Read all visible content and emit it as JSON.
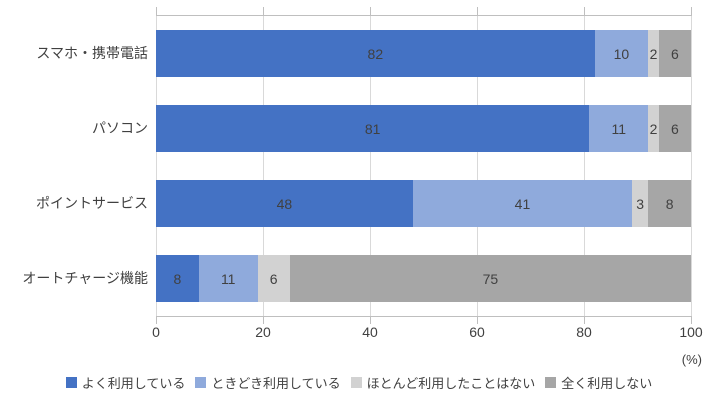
{
  "chart_data": {
    "type": "bar",
    "orientation": "horizontal",
    "stacked": true,
    "title": "",
    "categories": [
      "スマホ・携帯電話",
      "パソコン",
      "ポイントサービス",
      "オートチャージ機能"
    ],
    "series": [
      {
        "name": "よく利用している",
        "color": "#4472c4",
        "values": [
          82,
          81,
          48,
          8
        ]
      },
      {
        "name": "ときどき利用している",
        "color": "#8faadc",
        "values": [
          10,
          11,
          41,
          11
        ]
      },
      {
        "name": "ほとんど利用したことはない",
        "color": "#d2d2d2",
        "values": [
          2,
          2,
          3,
          6
        ]
      },
      {
        "name": "全く利用しない",
        "color": "#a6a6a6",
        "values": [
          6,
          6,
          8,
          75
        ]
      }
    ],
    "x_axis": {
      "min": 0,
      "max": 100,
      "ticks": [
        0,
        20,
        40,
        60,
        80,
        100
      ],
      "unit_label": "(%)"
    },
    "grid": true,
    "legend_position": "bottom"
  },
  "style": {
    "gridline_color": "#d9d9d9",
    "axis_line_color": "#bfbfbf",
    "text_color": "#404040",
    "background": "#ffffff"
  }
}
